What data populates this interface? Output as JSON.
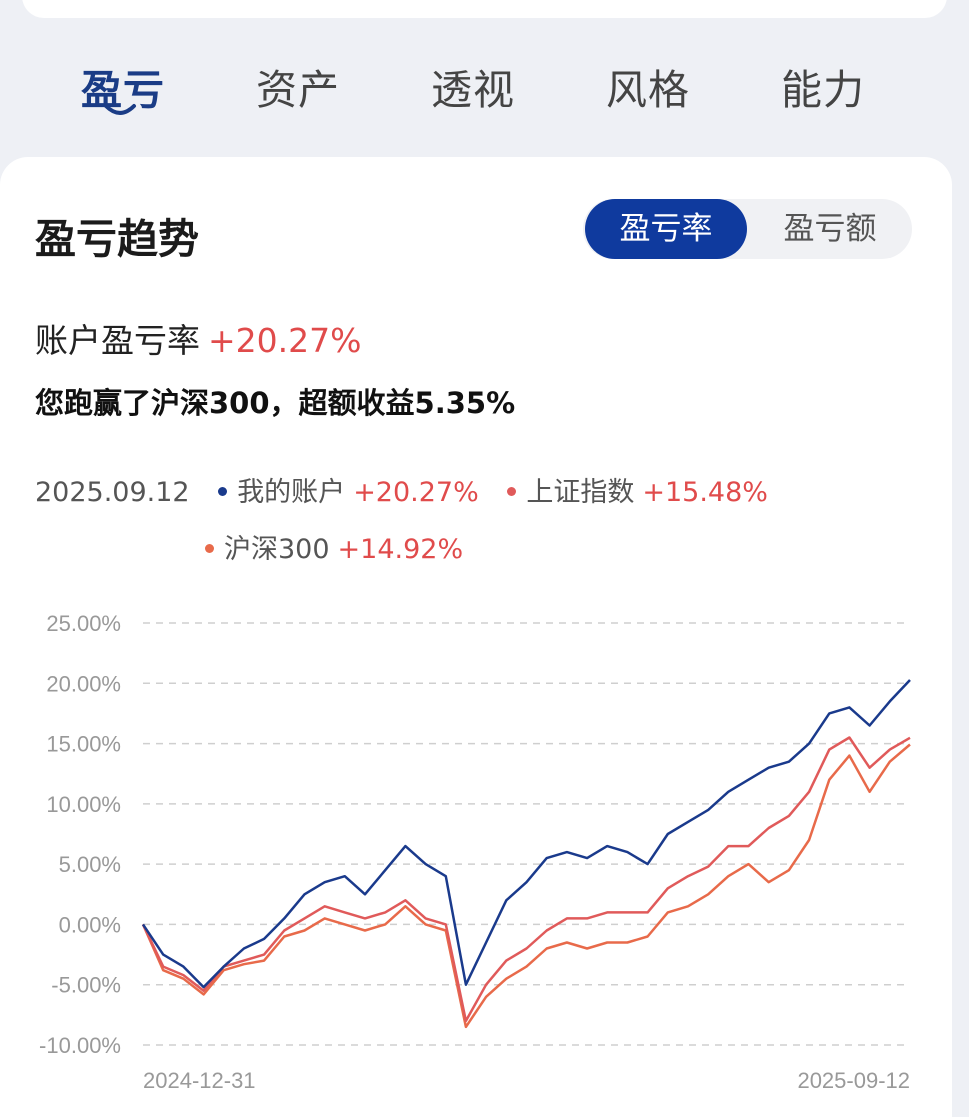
{
  "tabs": [
    {
      "label": "盈亏",
      "active": true
    },
    {
      "label": "资产",
      "active": false
    },
    {
      "label": "透视",
      "active": false
    },
    {
      "label": "风格",
      "active": false
    },
    {
      "label": "能力",
      "active": false
    }
  ],
  "section": {
    "title": "盈亏趋势"
  },
  "toggle": {
    "rate": "盈亏率",
    "amount": "盈亏额"
  },
  "summary": {
    "rate_label": "账户盈亏率",
    "rate_value": "+20.27%",
    "beat_text": "您跑赢了沪深300，超额收益5.35%"
  },
  "legend": {
    "date": "2025.09.12",
    "items": [
      {
        "name": "我的账户",
        "value": "+20.27%",
        "color": "#1a3a8c"
      },
      {
        "name": "上证指数",
        "value": "+15.48%",
        "color": "#e05a5a"
      },
      {
        "name": "沪深300",
        "value": "+14.92%",
        "color": "#e86a4a"
      }
    ]
  },
  "colors": {
    "accent": "#0f3a9e",
    "positive": "#e04b4b"
  },
  "chart_data": {
    "type": "line",
    "x_range": [
      "2024-12-31",
      "2025-09-12"
    ],
    "xticks": [
      "2024-12-31",
      "2025-09-12"
    ],
    "ylim": [
      -10,
      25
    ],
    "yticks": [
      "25.00%",
      "20.00%",
      "15.00%",
      "10.00%",
      "5.00%",
      "0.00%",
      "-5.00%",
      "-10.00%"
    ],
    "grid": true,
    "series": [
      {
        "name": "我的账户",
        "color": "#1a3a8c",
        "values": [
          0,
          -2.5,
          -3.5,
          -5.2,
          -3.5,
          -2.0,
          -1.2,
          0.5,
          2.5,
          3.5,
          4.0,
          2.5,
          4.5,
          6.5,
          5.0,
          4.0,
          -5.0,
          -1.5,
          2.0,
          3.5,
          5.5,
          6.0,
          5.5,
          6.5,
          6.0,
          5.0,
          7.5,
          8.5,
          9.5,
          11.0,
          12.0,
          13.0,
          13.5,
          15.0,
          17.5,
          18.0,
          16.5,
          18.5,
          20.27
        ]
      },
      {
        "name": "上证指数",
        "color": "#e05a5a",
        "values": [
          0,
          -3.5,
          -4.2,
          -5.5,
          -3.5,
          -3.0,
          -2.5,
          -0.5,
          0.5,
          1.5,
          1.0,
          0.5,
          1.0,
          2.0,
          0.5,
          0.0,
          -8.0,
          -5.0,
          -3.0,
          -2.0,
          -0.5,
          0.5,
          0.5,
          1.0,
          1.0,
          1.0,
          3.0,
          4.0,
          4.8,
          6.5,
          6.5,
          8.0,
          9.0,
          11.0,
          14.5,
          15.5,
          13.0,
          14.5,
          15.48
        ]
      },
      {
        "name": "沪深300",
        "color": "#e86a4a",
        "values": [
          0,
          -3.8,
          -4.5,
          -5.8,
          -3.8,
          -3.3,
          -3.0,
          -1.0,
          -0.5,
          0.5,
          0.0,
          -0.5,
          0.0,
          1.5,
          0.0,
          -0.5,
          -8.5,
          -6.0,
          -4.5,
          -3.5,
          -2.0,
          -1.5,
          -2.0,
          -1.5,
          -1.5,
          -1.0,
          1.0,
          1.5,
          2.5,
          4.0,
          5.0,
          3.5,
          4.5,
          7.0,
          12.0,
          14.0,
          11.0,
          13.5,
          14.92
        ]
      }
    ]
  }
}
